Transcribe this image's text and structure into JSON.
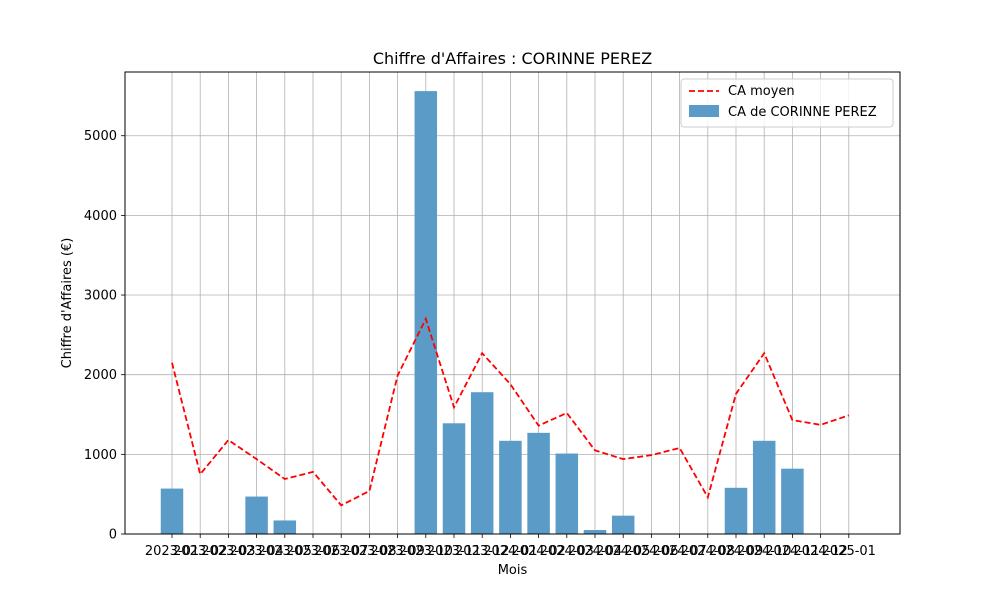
{
  "chart_data": {
    "type": "bar",
    "title": "Chiffre d'Affaires : CORINNE PEREZ",
    "xlabel": "Mois",
    "ylabel": "Chiffre d'Affaires (€)",
    "ylim": [
      0,
      5800
    ],
    "yticks": [
      0,
      1000,
      2000,
      3000,
      4000,
      5000
    ],
    "grid": true,
    "legend_position": "top-right",
    "categories": [
      "2023-01",
      "2023-02",
      "2023-03",
      "2023-04",
      "2023-05",
      "2023-06",
      "2023-07",
      "2023-08",
      "2023-09",
      "2023-10",
      "2023-11",
      "2023-12",
      "2024-01",
      "2024-02",
      "2024-03",
      "2024-04",
      "2024-05",
      "2024-06",
      "2024-07",
      "2024-08",
      "2024-09",
      "2024-10",
      "2024-11",
      "2024-12",
      "2025-01"
    ],
    "series": [
      {
        "name": "CA de CORINNE PEREZ",
        "kind": "bar",
        "color": "#5b9bc8",
        "values": [
          570,
          0,
          0,
          470,
          170,
          0,
          0,
          0,
          0,
          5560,
          1390,
          1780,
          1170,
          1270,
          1010,
          50,
          230,
          0,
          0,
          0,
          580,
          1170,
          820,
          0,
          0
        ]
      },
      {
        "name": "CA moyen",
        "kind": "line",
        "style": "dashed",
        "color": "#ff0000",
        "values": [
          2150,
          750,
          1180,
          940,
          690,
          780,
          360,
          540,
          1990,
          2700,
          1590,
          2270,
          1880,
          1360,
          1520,
          1050,
          940,
          990,
          1080,
          460,
          1760,
          2270,
          1430,
          1370,
          1490
        ]
      }
    ]
  }
}
